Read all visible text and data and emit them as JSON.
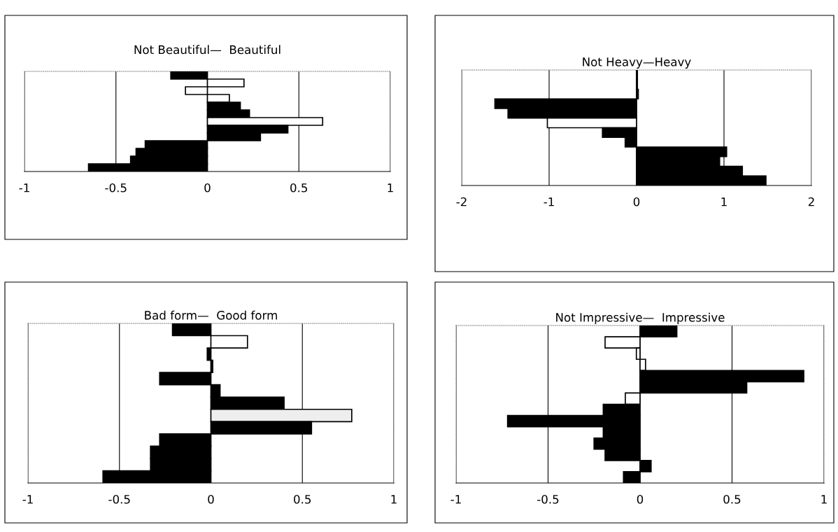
{
  "chart_data": [
    {
      "type": "bar",
      "orientation": "horizontal",
      "title": "Not Beautiful—  Beautiful",
      "categories": [
        null,
        null,
        null,
        null,
        null,
        null,
        null,
        null,
        null,
        null,
        null,
        null,
        null
      ],
      "values": [
        -0.2,
        0.2,
        -0.12,
        0.12,
        0.18,
        0.23,
        0.63,
        0.44,
        0.29,
        -0.34,
        -0.39,
        -0.42,
        -0.65
      ],
      "colors": [
        "#000000",
        "#ffffff",
        "#ffffff",
        "#ffffff",
        "#000000",
        "#000000",
        "#ffffff",
        "#000000",
        "#000000",
        "#000000",
        "#000000",
        "#000000",
        "#000000"
      ],
      "xlim": [
        -1,
        1
      ],
      "xticks": [
        -1,
        -0.5,
        0,
        0.5,
        1
      ],
      "grid": "x",
      "tick_labels": "x"
    },
    {
      "type": "bar",
      "orientation": "horizontal",
      "title": "Not Heavy—Heavy",
      "categories": [
        null,
        null,
        null,
        null,
        null,
        null,
        null,
        null,
        null,
        null,
        null,
        null
      ],
      "values": [
        0.01,
        0.01,
        0.02,
        -1.62,
        -1.47,
        -1.02,
        -0.39,
        -0.13,
        1.03,
        0.95,
        1.21,
        1.48
      ],
      "colors": [
        "#000000",
        "#000000",
        "#000000",
        "#000000",
        "#000000",
        "#ffffff",
        "#000000",
        "#000000",
        "#000000",
        "#000000",
        "#000000",
        "#000000"
      ],
      "xlim": [
        -2,
        2
      ],
      "xticks": [
        -2,
        -1,
        0,
        1,
        2
      ],
      "grid": "x",
      "tick_labels": "x"
    },
    {
      "type": "bar",
      "orientation": "horizontal",
      "title": "Bad form—  Good form",
      "categories": [
        null,
        null,
        null,
        null,
        null,
        null,
        null,
        null,
        null,
        null,
        null,
        null,
        null
      ],
      "values": [
        -0.21,
        0.2,
        -0.02,
        0.01,
        -0.28,
        0.05,
        0.4,
        0.77,
        0.55,
        -0.28,
        -0.33,
        -0.33,
        -0.59
      ],
      "colors": [
        "#000000",
        "#ffffff",
        "#000000",
        "#000000",
        "#000000",
        "#000000",
        "#000000",
        "#eeeeee",
        "#000000",
        "#000000",
        "#000000",
        "#000000",
        "#000000"
      ],
      "xlim": [
        -1,
        1
      ],
      "xticks": [
        -1,
        -0.5,
        0,
        0.5,
        1
      ],
      "grid": "x",
      "tick_labels": "x"
    },
    {
      "type": "bar",
      "orientation": "horizontal",
      "title": "Not Impressive—  Impressive",
      "categories": [
        null,
        null,
        null,
        null,
        null,
        null,
        null,
        null,
        null,
        null,
        null,
        null,
        null,
        null
      ],
      "values": [
        0.2,
        -0.19,
        -0.02,
        0.03,
        0.89,
        0.58,
        -0.08,
        -0.2,
        -0.72,
        -0.2,
        -0.25,
        -0.19,
        0.06,
        -0.09
      ],
      "colors": [
        "#000000",
        "#ffffff",
        "#ffffff",
        "#ffffff",
        "#000000",
        "#000000",
        "#ffffff",
        "#000000",
        "#000000",
        "#000000",
        "#000000",
        "#000000",
        "#000000",
        "#000000"
      ],
      "xlim": [
        -1,
        1
      ],
      "xticks": [
        -1,
        -0.5,
        0,
        0.5,
        1
      ],
      "grid": "x",
      "tick_labels": "x"
    }
  ]
}
